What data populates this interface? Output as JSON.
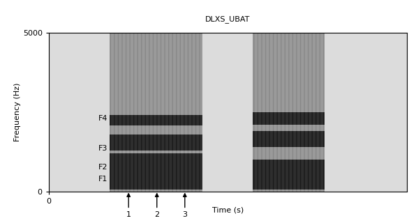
{
  "chart_data": {
    "type": "spectrogram",
    "title": "DLXS_UBAT",
    "x_label": "Time (s)",
    "y_label": "Frequency (Hz)",
    "xlim": [
      0,
      1
    ],
    "xticks": [
      0
    ],
    "ylim": [
      0,
      5000
    ],
    "yticks": [
      0,
      5000
    ],
    "segments": [
      {
        "start": 0.17,
        "end": 0.43,
        "bands": [
          [
            70,
            1200
          ],
          [
            1300,
            1800
          ],
          [
            2080,
            2410
          ]
        ]
      },
      {
        "start": 0.57,
        "end": 0.77,
        "bands": [
          [
            70,
            1000
          ],
          [
            1400,
            1900
          ],
          [
            2100,
            2500
          ]
        ]
      }
    ],
    "formant_labels": [
      {
        "label": "F4",
        "time": 0.165,
        "frequency": 2300
      },
      {
        "label": "F3",
        "time": 0.165,
        "frequency": 1360
      },
      {
        "label": "F2",
        "time": 0.165,
        "frequency": 770
      },
      {
        "label": "F1",
        "time": 0.165,
        "frequency": 395
      }
    ],
    "markers": [
      {
        "label": "1",
        "time": 0.223
      },
      {
        "label": "2",
        "time": 0.302
      },
      {
        "label": "3",
        "time": 0.38
      }
    ]
  }
}
